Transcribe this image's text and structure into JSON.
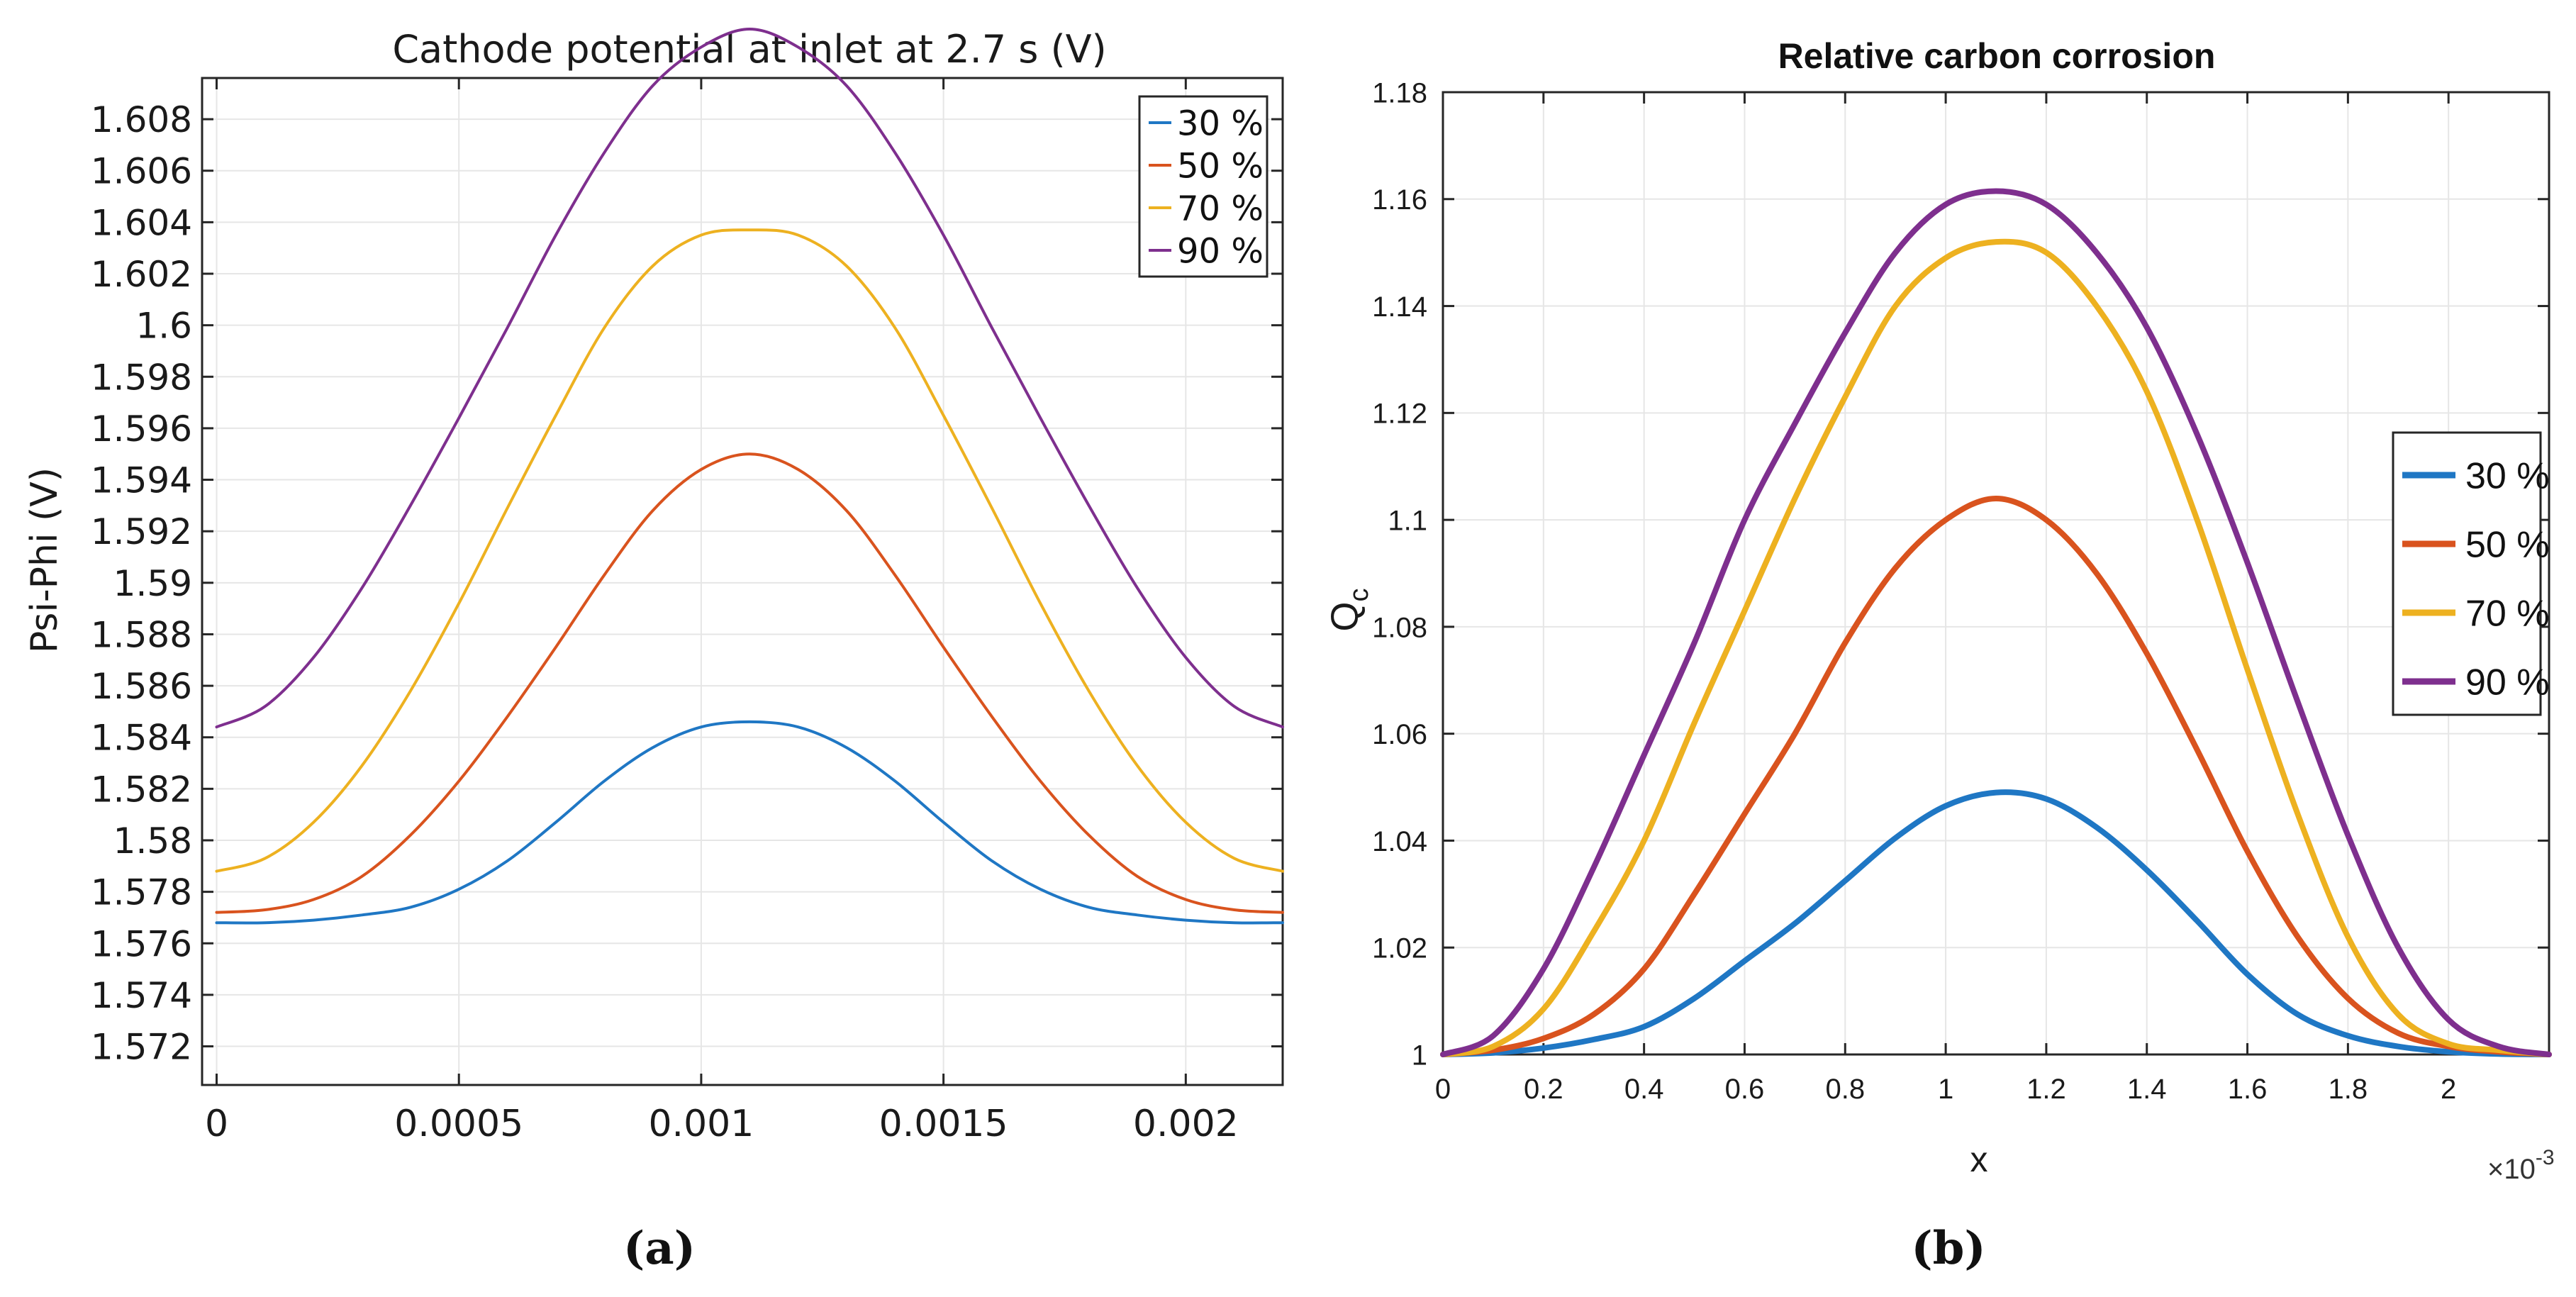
{
  "colors": {
    "s30": "#1f77c4",
    "s50": "#d9531e",
    "s70": "#edb120",
    "s90": "#7e2f8e",
    "axis": "#262626",
    "grid": "#e6e6e6"
  },
  "chart_data": [
    {
      "id": "a",
      "type": "line",
      "caption": "(a)",
      "title": "Cathode potential at inlet at 2.7 s (V)",
      "xlabel": "",
      "ylabel": "Psi-Phi (V)",
      "xlim": [
        -3e-05,
        0.0022
      ],
      "ylim": [
        1.5705,
        1.6096
      ],
      "xticks": [
        0,
        0.0005,
        0.001,
        0.0015,
        0.002
      ],
      "xtick_labels": [
        "0",
        "0.0005",
        "0.001",
        "0.0015",
        "0.002"
      ],
      "yticks": [
        1.572,
        1.574,
        1.576,
        1.578,
        1.58,
        1.582,
        1.584,
        1.586,
        1.588,
        1.59,
        1.592,
        1.594,
        1.596,
        1.598,
        1.6,
        1.602,
        1.604,
        1.606,
        1.608
      ],
      "ytick_labels": [
        "1.572",
        "1.574",
        "1.576",
        "1.578",
        "1.58",
        "1.582",
        "1.584",
        "1.586",
        "1.588",
        "1.59",
        "1.592",
        "1.594",
        "1.596",
        "1.598",
        "1.6",
        "1.602",
        "1.604",
        "1.606",
        "1.608"
      ],
      "grid": true,
      "legend_position": "top-right",
      "x": [
        0,
        0.0001,
        0.0002,
        0.0003,
        0.0004,
        0.0005,
        0.0006,
        0.0007,
        0.0008,
        0.0009,
        0.001,
        0.0011,
        0.0012,
        0.0013,
        0.0014,
        0.0015,
        0.0016,
        0.0017,
        0.0018,
        0.0019,
        0.002,
        0.0021,
        0.0022
      ],
      "series": [
        {
          "name": "30 %",
          "color_key": "s30",
          "values": [
            1.5768,
            1.5768,
            1.5769,
            1.5771,
            1.5774,
            1.5781,
            1.5792,
            1.5807,
            1.5823,
            1.5836,
            1.5844,
            1.5846,
            1.5844,
            1.5836,
            1.5823,
            1.5807,
            1.5792,
            1.5781,
            1.5774,
            1.5771,
            1.5769,
            1.5768,
            1.5768
          ]
        },
        {
          "name": "50 %",
          "color_key": "s50",
          "values": [
            1.5772,
            1.5773,
            1.5777,
            1.5786,
            1.5802,
            1.5823,
            1.5848,
            1.5875,
            1.5903,
            1.5928,
            1.5944,
            1.595,
            1.5944,
            1.5928,
            1.5903,
            1.5875,
            1.5848,
            1.5823,
            1.5802,
            1.5786,
            1.5777,
            1.5773,
            1.5772
          ]
        },
        {
          "name": "70 %",
          "color_key": "s70",
          "values": [
            1.5788,
            1.5793,
            1.5807,
            1.5829,
            1.5858,
            1.5892,
            1.5929,
            1.5965,
            1.5999,
            1.6023,
            1.6035,
            1.6037,
            1.6035,
            1.6023,
            1.5999,
            1.5965,
            1.5929,
            1.5892,
            1.5858,
            1.5829,
            1.5807,
            1.5793,
            1.5788
          ]
        },
        {
          "name": "90 %",
          "color_key": "s90",
          "values": [
            1.5844,
            1.5852,
            1.5871,
            1.5898,
            1.593,
            1.5964,
            1.5999,
            1.6035,
            1.6067,
            1.6093,
            1.6108,
            1.6115,
            1.6108,
            1.6093,
            1.6067,
            1.6035,
            1.5999,
            1.5964,
            1.593,
            1.5898,
            1.5871,
            1.5852,
            1.5844
          ]
        }
      ]
    },
    {
      "id": "b",
      "type": "line",
      "caption": "(b)",
      "title": "Relative carbon corrosion",
      "xlabel": "x",
      "ylabel": "Q",
      "ylabel_sub": "c",
      "x_multiplier_label": "×10",
      "x_multiplier_exp": "-3",
      "xlim": [
        0,
        2.2
      ],
      "ylim": [
        1.0,
        1.18
      ],
      "xticks": [
        0,
        0.2,
        0.4,
        0.6,
        0.8,
        1,
        1.2,
        1.4,
        1.6,
        1.8,
        2
      ],
      "xtick_labels": [
        "0",
        "0.2",
        "0.4",
        "0.6",
        "0.8",
        "1",
        "1.2",
        "1.4",
        "1.6",
        "1.8",
        "2"
      ],
      "yticks": [
        1,
        1.02,
        1.04,
        1.06,
        1.08,
        1.1,
        1.12,
        1.14,
        1.16,
        1.18
      ],
      "ytick_labels": [
        "1",
        "1.02",
        "1.04",
        "1.06",
        "1.08",
        "1.1",
        "1.12",
        "1.14",
        "1.16",
        "1.18"
      ],
      "grid": true,
      "legend_position": "right",
      "x": [
        0,
        0.1,
        0.2,
        0.3,
        0.4,
        0.5,
        0.6,
        0.7,
        0.8,
        0.9,
        1.0,
        1.1,
        1.2,
        1.3,
        1.4,
        1.5,
        1.6,
        1.7,
        1.8,
        1.9,
        2.0,
        2.1,
        2.2
      ],
      "series": [
        {
          "name": "30 %",
          "color_key": "s30",
          "values": [
            1.0,
            1.0003,
            1.0012,
            1.0028,
            1.0052,
            1.0105,
            1.0175,
            1.0245,
            1.0325,
            1.0405,
            1.0465,
            1.049,
            1.0478,
            1.0425,
            1.0345,
            1.025,
            1.015,
            1.0075,
            1.0035,
            1.0015,
            1.0005,
            1.0001,
            1.0
          ]
        },
        {
          "name": "50 %",
          "color_key": "s50",
          "values": [
            1.0,
            1.0008,
            1.003,
            1.0075,
            1.016,
            1.03,
            1.045,
            1.06,
            1.077,
            1.091,
            1.1,
            1.104,
            1.1,
            1.09,
            1.075,
            1.057,
            1.038,
            1.022,
            1.0105,
            1.004,
            1.0015,
            1.0005,
            1.0
          ]
        },
        {
          "name": "70 %",
          "color_key": "s70",
          "values": [
            1.0,
            1.0015,
            1.0085,
            1.023,
            1.04,
            1.062,
            1.083,
            1.104,
            1.123,
            1.14,
            1.149,
            1.152,
            1.15,
            1.14,
            1.124,
            1.1,
            1.072,
            1.045,
            1.022,
            1.0075,
            1.002,
            1.0008,
            1.0
          ]
        },
        {
          "name": "90 %",
          "color_key": "s90",
          "values": [
            1.0,
            1.0035,
            1.016,
            1.035,
            1.056,
            1.077,
            1.1,
            1.118,
            1.135,
            1.15,
            1.159,
            1.1615,
            1.159,
            1.15,
            1.136,
            1.116,
            1.092,
            1.066,
            1.041,
            1.02,
            1.0065,
            1.0015,
            1.0
          ]
        }
      ]
    }
  ]
}
